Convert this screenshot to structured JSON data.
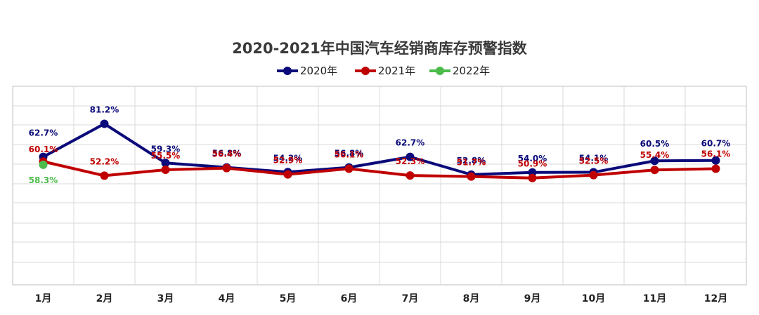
{
  "chart_data": {
    "type": "line",
    "title": "2020-2021年中国汽车经销商库存预警指数",
    "categories": [
      "1月",
      "2月",
      "3月",
      "4月",
      "5月",
      "6月",
      "7月",
      "8月",
      "9月",
      "10月",
      "11月",
      "12月"
    ],
    "series": [
      {
        "name": "2020年",
        "color": "#0a0a7a",
        "values": [
          62.7,
          81.2,
          59.3,
          56.8,
          54.2,
          56.8,
          62.7,
          52.8,
          54.0,
          54.1,
          60.5,
          60.7
        ],
        "labels": [
          "62.7%",
          "81.2%",
          "59.3%",
          "56.8%",
          "54.2%",
          "56.8%",
          "62.7%",
          "52.8%",
          "54.0%",
          "54.1%",
          "60.5%",
          "60.7%"
        ]
      },
      {
        "name": "2021年",
        "color": "#c00000",
        "values": [
          60.1,
          52.2,
          55.5,
          56.4,
          52.9,
          56.1,
          52.3,
          51.7,
          50.9,
          52.5,
          55.4,
          56.1
        ],
        "labels": [
          "60.1%",
          "52.2%",
          "55.5%",
          "56.4%",
          "52.9%",
          "56.1%",
          "52.3%",
          "51.7%",
          "50.9%",
          "52.5%",
          "55.4%",
          "56.1%"
        ]
      },
      {
        "name": "2022年",
        "color": "#4cbb4c",
        "values": [
          58.3,
          null,
          null,
          null,
          null,
          null,
          null,
          null,
          null,
          null,
          null,
          null
        ],
        "labels": [
          "58.3%",
          "",
          "",
          "",
          "",
          "",
          "",
          "",
          "",
          "",
          "",
          ""
        ]
      }
    ],
    "ylim": [
      0,
      100
    ],
    "grid": true,
    "legend_position": "top-center",
    "xlabel": "",
    "ylabel": ""
  }
}
